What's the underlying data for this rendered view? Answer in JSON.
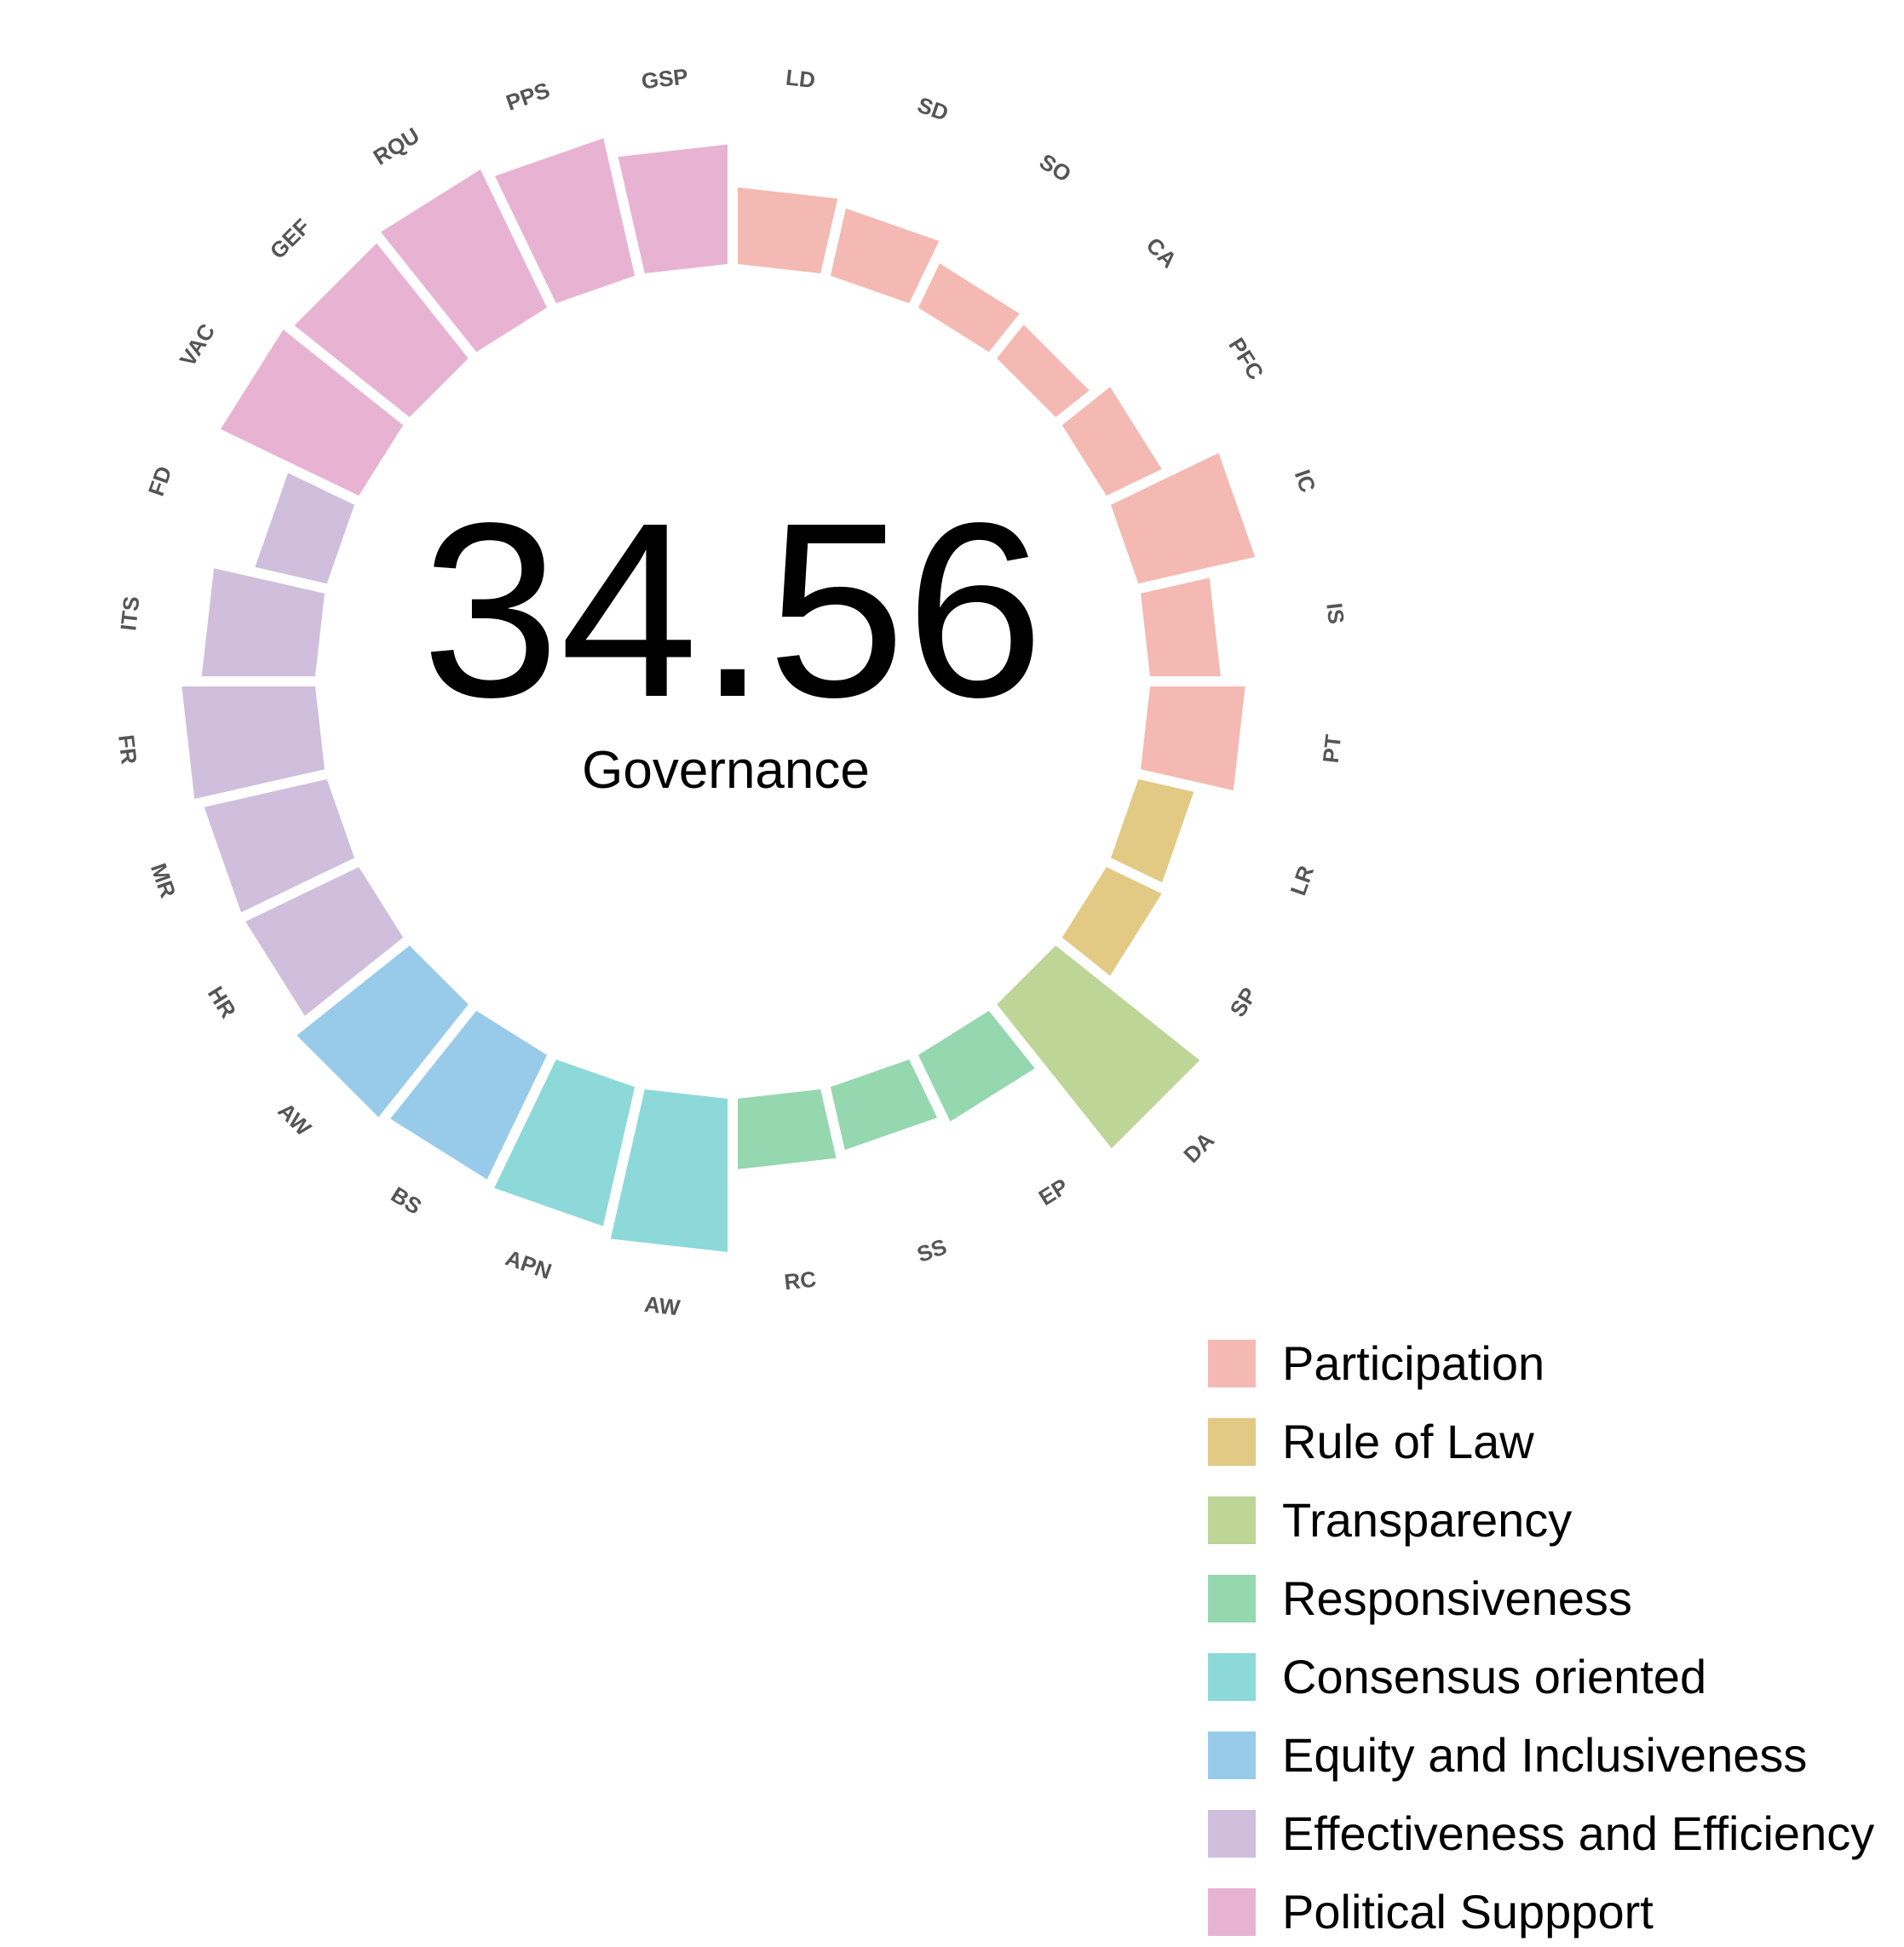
{
  "chart_data": {
    "type": "bar",
    "center_value": "34.56",
    "center_label": "Governance",
    "categories": [
      {
        "name": "Participation",
        "color": "#F4B9B2"
      },
      {
        "name": "Rule of Law",
        "color": "#E2CA85"
      },
      {
        "name": "Transparency",
        "color": "#BDD596"
      },
      {
        "name": "Responsiveness",
        "color": "#95D7AE"
      },
      {
        "name": "Consensus oriented",
        "color": "#8DD9D9"
      },
      {
        "name": "Equity and Inclusiveness",
        "color": "#97CBE9"
      },
      {
        "name": "Effectiveness and Efficiency",
        "color": "#CFBEDC"
      },
      {
        "name": "Political Suppport",
        "color": "#E8B3D2"
      }
    ],
    "bars": [
      {
        "label": "LD",
        "group": 0,
        "value": 0.5
      },
      {
        "label": "SD",
        "group": 0,
        "value": 0.45
      },
      {
        "label": "SO",
        "group": 0,
        "value": 0.32
      },
      {
        "label": "CA",
        "group": 0,
        "value": 0.28
      },
      {
        "label": "PFC",
        "group": 0,
        "value": 0.4
      },
      {
        "label": "IC",
        "group": 0,
        "value": 0.78
      },
      {
        "label": "IS",
        "group": 0,
        "value": 0.46
      },
      {
        "label": "PT",
        "group": 0,
        "value": 0.62
      },
      {
        "label": "LR",
        "group": 1,
        "value": 0.37
      },
      {
        "label": "SP",
        "group": 1,
        "value": 0.4
      },
      {
        "label": "DA",
        "group": 2,
        "value": 1.2
      },
      {
        "label": "EP",
        "group": 3,
        "value": 0.48
      },
      {
        "label": "SS",
        "group": 3,
        "value": 0.42
      },
      {
        "label": "RC",
        "group": 3,
        "value": 0.46
      },
      {
        "label": "AW",
        "group": 4,
        "value": 1.0
      },
      {
        "label": "APN",
        "group": 4,
        "value": 0.93
      },
      {
        "label": "BS",
        "group": 5,
        "value": 0.9
      },
      {
        "label": "AW",
        "group": 5,
        "value": 0.94
      },
      {
        "label": "HR",
        "group": 6,
        "value": 0.82
      },
      {
        "label": "MR",
        "group": 6,
        "value": 0.82
      },
      {
        "label": "FR",
        "group": 6,
        "value": 0.87
      },
      {
        "label": "ITS",
        "group": 6,
        "value": 0.74
      },
      {
        "label": "FD",
        "group": 6,
        "value": 0.48
      },
      {
        "label": "VAC",
        "group": 7,
        "value": 1.0
      },
      {
        "label": "GEF",
        "group": 7,
        "value": 0.96
      },
      {
        "label": "RQU",
        "group": 7,
        "value": 1.0
      },
      {
        "label": "PPS",
        "group": 7,
        "value": 0.92
      },
      {
        "label": "GSP",
        "group": 7,
        "value": 0.78
      }
    ]
  }
}
